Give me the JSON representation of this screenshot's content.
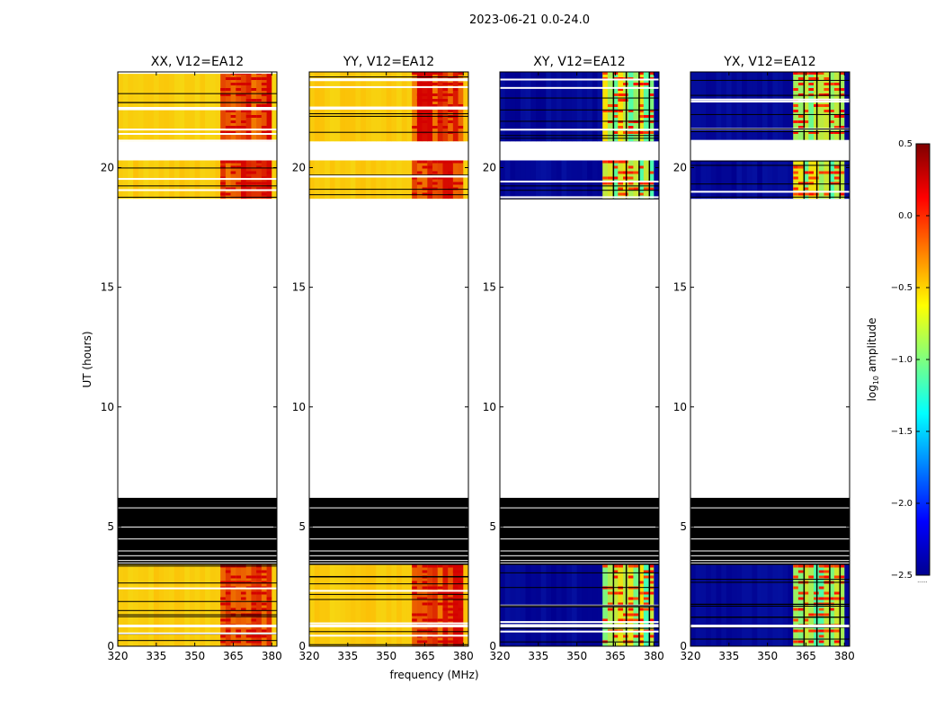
{
  "suptitle": "2023-06-21 0.0-24.0",
  "xlabel": "frequency (MHz)",
  "ylabel": "UT (hours)",
  "colorbar_label": "log$_{10}$ amplitude",
  "colorbar_label_main": "log",
  "colorbar_label_sub": "10",
  "colorbar_label_rest": " amplitude",
  "colorbar_footnote": "......",
  "colors": {
    "co_low": "#f2e91a",
    "co_mid": "#ffb300",
    "co_high": "#d40000",
    "cross_low": "#00008f",
    "cross_mid": "#1f6dff",
    "cross_high": "#44ffb4",
    "flag_black": "#000000",
    "flag_white": "#ffffff"
  },
  "chart_data": {
    "type": "heatmap",
    "xlim": [
      320,
      382
    ],
    "ylim": [
      0,
      24
    ],
    "xticks": [
      320,
      335,
      350,
      365,
      380
    ],
    "xtick_labels": [
      "320",
      "335",
      "350",
      "365",
      "380"
    ],
    "yticks": [
      0,
      5,
      10,
      15,
      20
    ],
    "ytick_labels": [
      "0",
      "5",
      "10",
      "15",
      "20"
    ],
    "panels": [
      {
        "title": "XX, V12=EA12",
        "kind": "co"
      },
      {
        "title": "YY, V12=EA12",
        "kind": "co"
      },
      {
        "title": "XY, V12=EA12",
        "kind": "cross"
      },
      {
        "title": "YX, V12=EA12",
        "kind": "cross"
      }
    ],
    "data_blocks": [
      {
        "t_start": 0.0,
        "t_end": 3.4,
        "note": "observed data"
      },
      {
        "t_start": 3.4,
        "t_end": 6.2,
        "note": "flagged (black)"
      },
      {
        "t_start": 6.2,
        "t_end": 18.7,
        "note": "no data (white)"
      },
      {
        "t_start": 18.7,
        "t_end": 20.3,
        "note": "observed data"
      },
      {
        "t_start": 20.3,
        "t_end": 21.1,
        "note": "no data (white)"
      },
      {
        "t_start": 21.1,
        "t_end": 24.0,
        "note": "observed data"
      }
    ],
    "bright_band_MHz": [
      360,
      380
    ],
    "colorbar": {
      "vmin": -2.5,
      "vmax": 0.5,
      "ticks": [
        -2.5,
        -2.0,
        -1.5,
        -1.0,
        -0.5,
        0.0,
        0.5
      ],
      "tick_labels": [
        "−2.5",
        "−2.0",
        "−1.5",
        "−1.0",
        "−0.5",
        "0.0",
        "0.5"
      ],
      "colormap": "jet"
    }
  }
}
